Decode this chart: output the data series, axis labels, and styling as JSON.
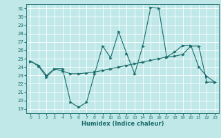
{
  "xlabel": "Humidex (Indice chaleur)",
  "background_color": "#c0e8e8",
  "line_color": "#1a6b6b",
  "grid_color": "#ffffff",
  "xlim": [
    -0.5,
    23.5
  ],
  "ylim": [
    18.5,
    31.5
  ],
  "yticks": [
    19,
    20,
    21,
    22,
    23,
    24,
    25,
    26,
    27,
    28,
    29,
    30,
    31
  ],
  "xticks": [
    0,
    1,
    2,
    3,
    4,
    5,
    6,
    7,
    8,
    9,
    10,
    11,
    12,
    13,
    14,
    15,
    16,
    17,
    18,
    19,
    20,
    21,
    22,
    23
  ],
  "line1_x": [
    0,
    1,
    2,
    3,
    4,
    5,
    6,
    7,
    8,
    9,
    10,
    11,
    12,
    13,
    14,
    15,
    16,
    17,
    18,
    19,
    20,
    21,
    22,
    23
  ],
  "line1_y": [
    24.7,
    24.1,
    22.8,
    23.8,
    23.8,
    19.8,
    19.2,
    19.8,
    23.2,
    26.5,
    25.1,
    28.2,
    25.6,
    23.2,
    26.5,
    31.1,
    31.0,
    25.2,
    25.8,
    26.6,
    26.6,
    24.0,
    22.9,
    22.2
  ],
  "line2_x": [
    0,
    1,
    2,
    3,
    4,
    5,
    6,
    7,
    8,
    9,
    10,
    11,
    12,
    13,
    14,
    15,
    16,
    17,
    18,
    19,
    20,
    21,
    22,
    23
  ],
  "line2_y": [
    24.7,
    24.2,
    23.0,
    23.8,
    23.5,
    23.2,
    23.2,
    23.3,
    23.4,
    23.6,
    23.8,
    24.0,
    24.2,
    24.4,
    24.6,
    24.8,
    25.0,
    25.2,
    25.3,
    25.5,
    26.5,
    26.5,
    22.2,
    22.2
  ]
}
